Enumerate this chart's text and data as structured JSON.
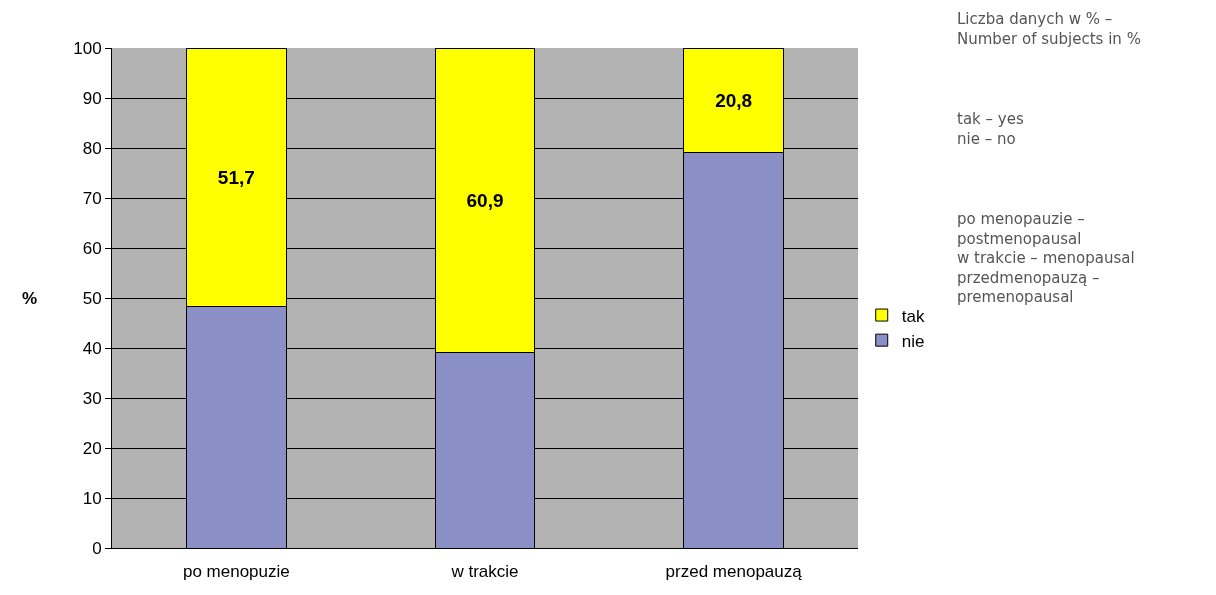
{
  "chart_data": {
    "type": "bar",
    "stacked": true,
    "ylabel": "%",
    "categories": [
      "po menopuzie",
      "w trakcie",
      "przed menopauzą"
    ],
    "series": [
      {
        "name": "nie",
        "color": "#8a8fc6",
        "values": [
          48.3,
          39.1,
          79.2
        ]
      },
      {
        "name": "tak",
        "color": "#ffff00",
        "values": [
          51.7,
          60.9,
          20.8
        ],
        "value_labels": [
          "51,7",
          "60,9",
          "20,8"
        ]
      }
    ],
    "ylim": [
      0,
      100
    ],
    "yticks": [
      0,
      10,
      20,
      30,
      40,
      50,
      60,
      70,
      80,
      90,
      100
    ],
    "grid": "y",
    "legend": "right",
    "annotations": [
      "Liczba danych w % –\nNumber of subjects in %",
      "tak – yes\nnie – no",
      "po menopauzie –\npostmenopausal\nw trakcie – menopausal\nprzedmenopauzą –\npremenopausal"
    ]
  }
}
